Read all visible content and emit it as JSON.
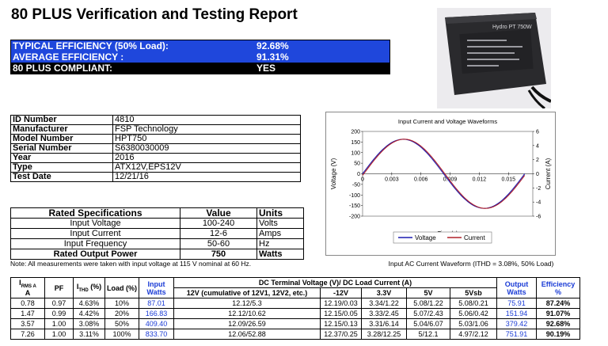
{
  "title": "80 PLUS Verification and Testing Report",
  "efficiency": {
    "typical_label": "TYPICAL EFFICIENCY (50% Load):",
    "typical_value": "92.68%",
    "average_label": "AVERAGE EFFICIENCY :",
    "average_value": "91.31%",
    "compliant_label": "80 PLUS COMPLIANT:",
    "compliant_value": "YES"
  },
  "info": [
    {
      "key": "ID Number",
      "value": "4810"
    },
    {
      "key": "Manufacturer",
      "value": "FSP Technology"
    },
    {
      "key": "Model Number",
      "value": "HPT750"
    },
    {
      "key": "Serial Number",
      "value": "S6380030009"
    },
    {
      "key": "Year",
      "value": "2016"
    },
    {
      "key": "Type",
      "value": "ATX12V,EPS12V"
    },
    {
      "key": "Test Date",
      "value": "12/21/16"
    }
  ],
  "rated": {
    "headers": [
      "Rated Specifications",
      "Value",
      "Units"
    ],
    "rows": [
      {
        "name": "Input Voltage",
        "value": "100-240",
        "unit": "Volts",
        "bold": false
      },
      {
        "name": "Input Current",
        "value": "12-6",
        "unit": "Amps",
        "bold": false
      },
      {
        "name": "Input Frequency",
        "value": "50-60",
        "unit": "Hz",
        "bold": false
      },
      {
        "name": "Rated Output Power",
        "value": "750",
        "unit": "Watts",
        "bold": true
      }
    ]
  },
  "note": "Note: All measurements were taken with input voltage at 115 V nominal at 60 Hz.",
  "photo_label": "Hydro PT 750W",
  "chart_caption": "Input AC Current Waveform (ITHD = 3.08%, 50% Load)",
  "chart_data": {
    "type": "line",
    "title": "Input Current and Voltage Waveforms",
    "xlabel": "Time (s)",
    "ylabel": "Voltage (V)",
    "y2label": "Current (A)",
    "xlim": [
      0,
      0.0175
    ],
    "ylim": [
      -200,
      200
    ],
    "y2lim": [
      -6,
      6
    ],
    "x_ticks": [
      "0",
      "0.003",
      "0.006",
      "0.009",
      "0.012",
      "0.015"
    ],
    "x_tick_values": [
      0,
      0.003,
      0.006,
      0.009,
      0.012,
      0.015
    ],
    "y_ticks": [
      "200",
      "150",
      "100",
      "50",
      "0",
      "-50",
      "-100",
      "-150",
      "-200"
    ],
    "y2_ticks": [
      "6",
      "4",
      "2",
      "0",
      "-2",
      "-4",
      "-6"
    ],
    "legend_position": "bottom",
    "series": [
      {
        "name": "Voltage",
        "color": "#1c1cb0",
        "axis": "left",
        "amplitude": 163,
        "x": [
          0,
          0.001,
          0.002,
          0.003,
          0.004,
          0.005,
          0.006,
          0.007,
          0.008,
          0.009,
          0.01,
          0.011,
          0.012,
          0.013,
          0.014,
          0.015,
          0.016,
          0.0167
        ]
      },
      {
        "name": "Current",
        "color": "#b0202a",
        "axis": "right",
        "amplitude": 4.9
      }
    ]
  },
  "main_table": {
    "h_irms": "I",
    "h_irms_sub": "RMS A",
    "h_irms_unit": "A",
    "h_pf": "PF",
    "h_ithd": "I",
    "h_ithd_sub": "THD",
    "h_ithd_unit": "(%)",
    "h_load": "Load (%)",
    "h_input1": "Input",
    "h_input2": "Watts",
    "h_dc": "DC Terminal Voltage (V)/ DC Load Current (A)",
    "h_12v": "12V (cumulative of 12V1, 12V2, etc.)",
    "h_n12v": "-12V",
    "h_33v": "3.3V",
    "h_5v": "5V",
    "h_5vsb": "5Vsb",
    "h_out1": "Output",
    "h_out2": "Watts",
    "h_eff1": "Efficiency",
    "h_eff2": "%",
    "rows": [
      {
        "irms": "0.78",
        "pf": "0.97",
        "ithd": "4.63%",
        "load": "10%",
        "input": "87.01",
        "v12": "12.12/5.3",
        "vn12": "12.19/0.03",
        "v33": "3.34/1.22",
        "v5": "5.08/1.22",
        "v5sb": "5.08/0.21",
        "out": "75.91",
        "eff": "87.24%"
      },
      {
        "irms": "1.47",
        "pf": "0.99",
        "ithd": "4.42%",
        "load": "20%",
        "input": "166.83",
        "v12": "12.12/10.62",
        "vn12": "12.15/0.05",
        "v33": "3.33/2.45",
        "v5": "5.07/2.43",
        "v5sb": "5.06/0.42",
        "out": "151.94",
        "eff": "91.07%"
      },
      {
        "irms": "3.57",
        "pf": "1.00",
        "ithd": "3.08%",
        "load": "50%",
        "input": "409.40",
        "v12": "12.09/26.59",
        "vn12": "12.15/0.13",
        "v33": "3.31/6.14",
        "v5": "5.04/6.07",
        "v5sb": "5.03/1.06",
        "out": "379.42",
        "eff": "92.68%"
      },
      {
        "irms": "7.26",
        "pf": "1.00",
        "ithd": "3.11%",
        "load": "100%",
        "input": "833.70",
        "v12": "12.06/52.88",
        "vn12": "12.37/0.25",
        "v33": "3.28/12.25",
        "v5": "5/12.1",
        "v5sb": "4.97/2.12",
        "out": "751.91",
        "eff": "90.19%"
      }
    ]
  }
}
